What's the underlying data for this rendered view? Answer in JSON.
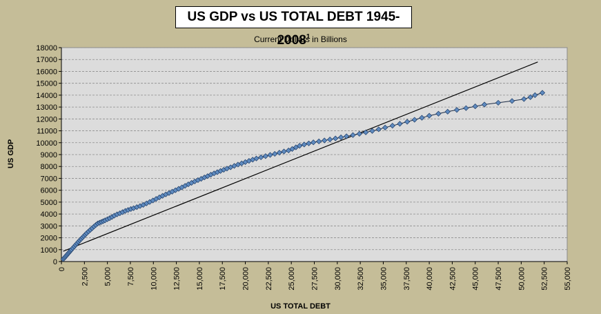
{
  "colors": {
    "background": "#c5bd98",
    "plot_area": "#dcdcdc",
    "marker_fill": "#5f8bc0",
    "marker_stroke": "#1f3d66",
    "trend_line": "#000000"
  },
  "chart_data": {
    "type": "scatter",
    "title": "US GDP vs US TOTAL DEBT 1945-2008",
    "title_superscript": "1",
    "subtitle": "Current Dollars in Billions",
    "xlabel": "US TOTAL DEBT",
    "ylabel": "US GDP",
    "xlim": [
      0,
      55000
    ],
    "ylim": [
      0,
      18000
    ],
    "x_ticks": [
      0,
      2500,
      5000,
      7500,
      10000,
      12500,
      15000,
      17500,
      20000,
      22500,
      25000,
      27500,
      30000,
      32500,
      35000,
      37500,
      40000,
      42500,
      45000,
      47500,
      50000,
      52500,
      55000
    ],
    "x_tick_labels": [
      "0",
      "2,500",
      "5,000",
      "7,500",
      "10,000",
      "12,500",
      "15,000",
      "17,500",
      "20,000",
      "22,500",
      "25,000",
      "27,500",
      "30,000",
      "32,500",
      "35,000",
      "37,500",
      "40,000",
      "42,500",
      "45,000",
      "47,500",
      "50,000",
      "52,500",
      "55,000"
    ],
    "y_ticks": [
      0,
      1000,
      2000,
      3000,
      4000,
      5000,
      6000,
      7000,
      8000,
      9000,
      10000,
      11000,
      12000,
      13000,
      14000,
      15000,
      16000,
      17000,
      18000
    ],
    "y_tick_labels": [
      "0",
      "1000",
      "2000",
      "3000",
      "4000",
      "5000",
      "6000",
      "7000",
      "8000",
      "9000",
      "10000",
      "11000",
      "12000",
      "13000",
      "14000",
      "15000",
      "16000",
      "17000",
      "18000"
    ],
    "grid": "horizontal-dashed",
    "legend": "none",
    "series": [
      {
        "marker": "diamond",
        "connected": true,
        "x": [
          200,
          300,
          400,
          500,
          600,
          700,
          800,
          900,
          1000,
          1100,
          1250,
          1400,
          1550,
          1700,
          1850,
          2000,
          2150,
          2300,
          2450,
          2600,
          2750,
          2950,
          3150,
          3350,
          3550,
          3750,
          3950,
          4150,
          4350,
          4550,
          4750,
          5000,
          5250,
          5500,
          5750,
          6050,
          6350,
          6650,
          6950,
          7250,
          7550,
          7850,
          8200,
          8550,
          8900,
          9250,
          9600,
          9950,
          10300,
          10650,
          11000,
          11350,
          11700,
          12050,
          12400,
          12750,
          13100,
          13450,
          13800,
          14150,
          14500,
          14850,
          15200,
          15550,
          15900,
          16250,
          16600,
          16950,
          17300,
          17650,
          18000,
          18400,
          18800,
          19200,
          19600,
          20000,
          20400,
          20800,
          21200,
          21700,
          22200,
          22700,
          23200,
          23700,
          24200,
          24700,
          25100,
          25500,
          25900,
          26400,
          26900,
          27400,
          28000,
          28600,
          29200,
          29800,
          30400,
          31000,
          31700,
          32400,
          33100,
          33800,
          34500,
          35200,
          36000,
          36800,
          37600,
          38400,
          39200,
          40000,
          41000,
          42000,
          43000,
          44000,
          45000,
          46000,
          47500,
          49000,
          50300,
          51000,
          51500,
          52300
        ],
        "y": [
          210,
          290,
          380,
          470,
          560,
          650,
          740,
          830,
          920,
          1010,
          1140,
          1270,
          1400,
          1530,
          1660,
          1790,
          1910,
          2030,
          2150,
          2270,
          2390,
          2530,
          2670,
          2810,
          2950,
          3080,
          3200,
          3270,
          3330,
          3400,
          3470,
          3560,
          3650,
          3750,
          3860,
          3970,
          4060,
          4160,
          4260,
          4340,
          4420,
          4490,
          4580,
          4670,
          4770,
          4890,
          5010,
          5140,
          5270,
          5400,
          5530,
          5650,
          5760,
          5880,
          6000,
          6120,
          6240,
          6370,
          6500,
          6620,
          6740,
          6850,
          6960,
          7080,
          7190,
          7310,
          7420,
          7520,
          7620,
          7720,
          7820,
          7930,
          8050,
          8160,
          8260,
          8370,
          8470,
          8570,
          8670,
          8770,
          8870,
          8970,
          9060,
          9160,
          9260,
          9350,
          9470,
          9610,
          9740,
          9850,
          9940,
          10030,
          10110,
          10190,
          10270,
          10360,
          10450,
          10540,
          10640,
          10750,
          10870,
          10990,
          11130,
          11270,
          11430,
          11590,
          11760,
          11930,
          12100,
          12270,
          12440,
          12610,
          12760,
          12910,
          13060,
          13210,
          13360,
          13510,
          13670,
          13830,
          14000,
          14200
        ]
      }
    ],
    "trendline": {
      "type": "linear",
      "x": [
        200,
        51800
      ],
      "y": [
        870,
        16790
      ]
    }
  }
}
